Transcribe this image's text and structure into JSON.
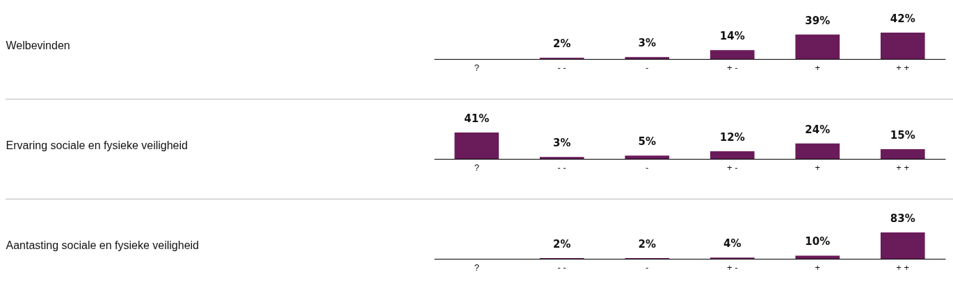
{
  "chart_data": [
    {
      "type": "bar",
      "ylabel": "Welbevinden",
      "categories": [
        "?",
        "- -",
        "-",
        "+ -",
        "+",
        "+ +"
      ],
      "values": [
        null,
        2,
        3,
        14,
        39,
        42
      ],
      "value_labels": [
        null,
        "2%",
        "3%",
        "14%",
        "39%",
        "42%"
      ],
      "color": "#6a1b5a"
    },
    {
      "type": "bar",
      "ylabel": "Ervaring sociale en fysieke veiligheid",
      "categories": [
        "?",
        "- -",
        "-",
        "+ -",
        "+",
        "+ +"
      ],
      "values": [
        41,
        3,
        5,
        12,
        24,
        15
      ],
      "value_labels": [
        "41%",
        "3%",
        "5%",
        "12%",
        "24%",
        "15%"
      ],
      "color": "#6a1b5a"
    },
    {
      "type": "bar",
      "ylabel": "Aantasting sociale en fysieke veiligheid",
      "categories": [
        "?",
        "- -",
        "-",
        "+ -",
        "+",
        "+ +"
      ],
      "values": [
        null,
        2,
        2,
        4,
        10,
        83
      ],
      "value_labels": [
        null,
        "2%",
        "2%",
        "4%",
        "10%",
        "83%"
      ],
      "color": "#6a1b5a"
    }
  ]
}
